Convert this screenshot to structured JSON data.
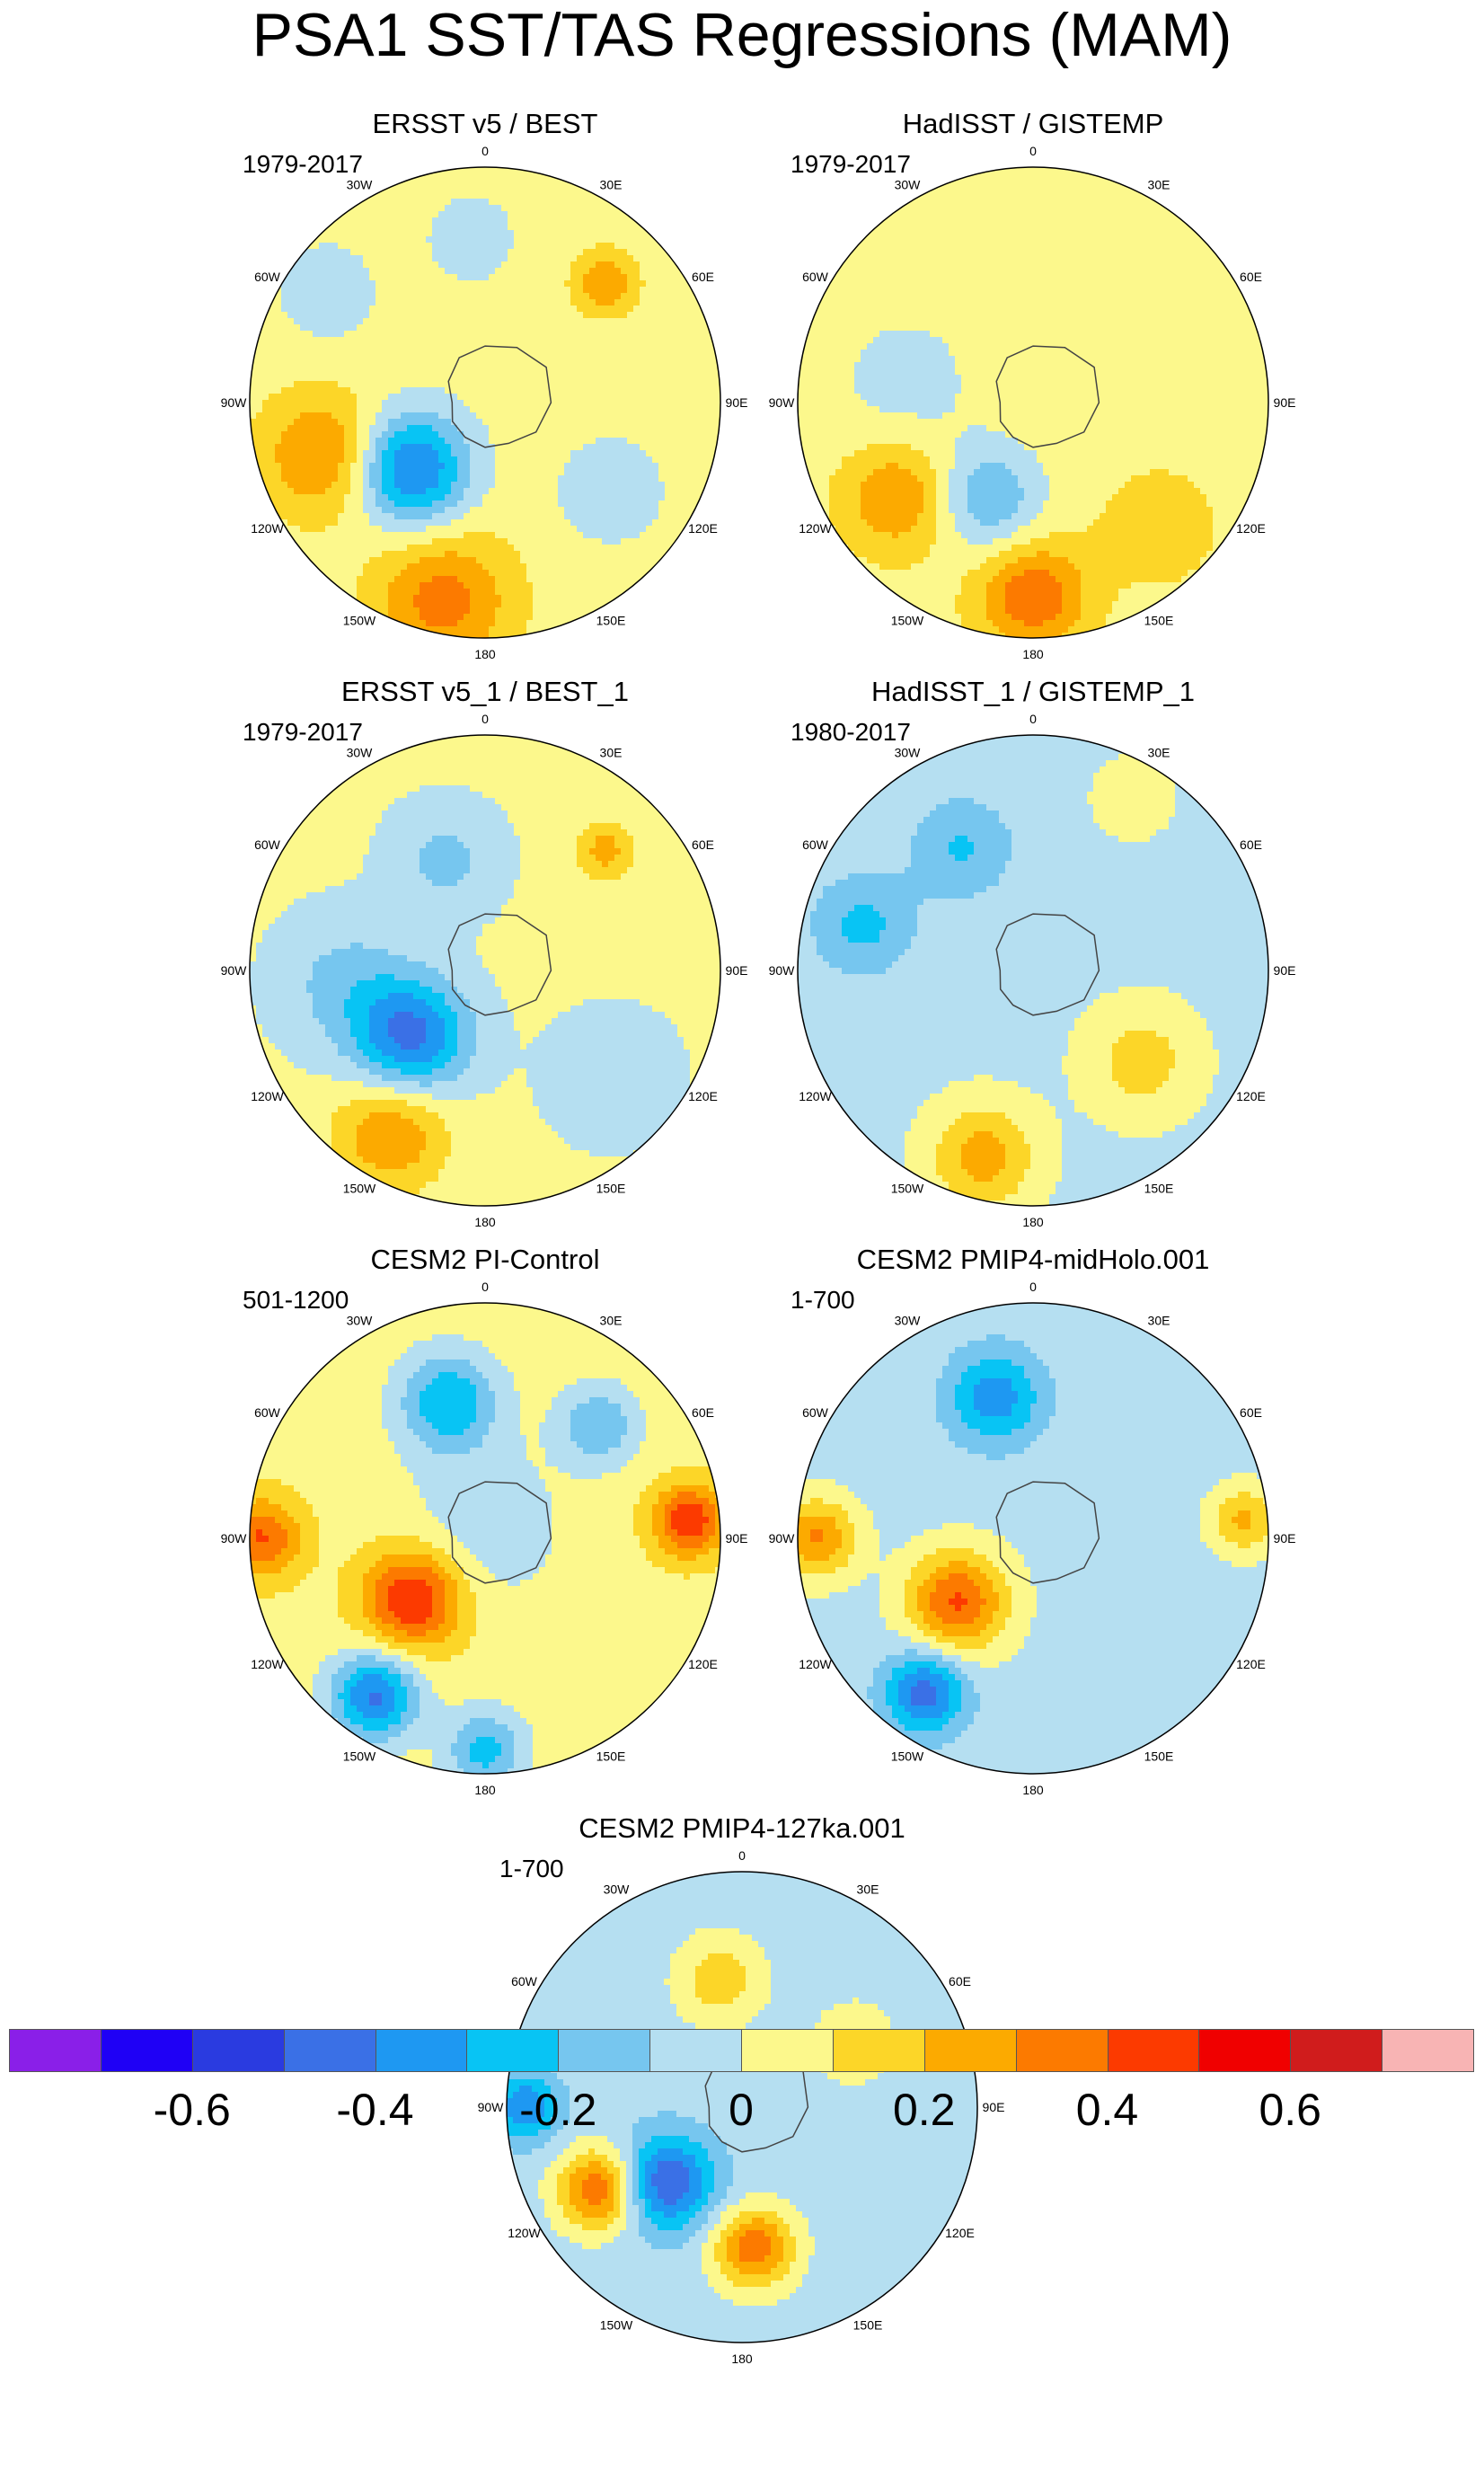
{
  "chart_data": {
    "type": "polar-stereographic contour maps",
    "title": "PSA1 SST/TAS Regressions (MAM)",
    "longitude_labels": [
      "0",
      "30E",
      "60E",
      "90E",
      "120E",
      "150E",
      "180",
      "150W",
      "120W",
      "90W",
      "60W",
      "30W"
    ],
    "panels": [
      {
        "title": "ERSST v5 / BEST",
        "years": "1979-2017",
        "pattern": {
          "base": 0.05,
          "blobs": [
            {
              "az": 228,
              "r": 0.42,
              "v": -0.48,
              "s": 0.17
            },
            {
              "az": 252,
              "r": 0.72,
              "v": 0.28,
              "s": 0.18
            },
            {
              "az": 192,
              "r": 0.86,
              "v": 0.3,
              "s": 0.2
            },
            {
              "az": 45,
              "r": 0.72,
              "v": 0.25,
              "s": 0.09
            },
            {
              "az": 125,
              "r": 0.65,
              "v": -0.15,
              "s": 0.15
            },
            {
              "az": 305,
              "r": 0.82,
              "v": -0.12,
              "s": 0.15
            },
            {
              "az": 355,
              "r": 0.7,
              "v": -0.1,
              "s": 0.15
            }
          ]
        }
      },
      {
        "title": "HadISST / GISTEMP",
        "years": "1979-2017",
        "pattern": {
          "base": 0.06,
          "blobs": [
            {
              "az": 205,
              "r": 0.45,
              "v": -0.25,
              "s": 0.16
            },
            {
              "az": 180,
              "r": 0.82,
              "v": 0.33,
              "s": 0.16
            },
            {
              "az": 235,
              "r": 0.7,
              "v": 0.25,
              "s": 0.16
            },
            {
              "az": 280,
              "r": 0.55,
              "v": -0.1,
              "s": 0.22
            },
            {
              "az": 135,
              "r": 0.75,
              "v": 0.12,
              "s": 0.16
            }
          ]
        }
      },
      {
        "title": "ERSST v5_1 / BEST_1",
        "years": "1979-2017",
        "pattern": {
          "base": 0.02,
          "blobs": [
            {
              "az": 228,
              "r": 0.42,
              "v": -0.45,
              "s": 0.17
            },
            {
              "az": 210,
              "r": 0.8,
              "v": 0.28,
              "s": 0.17
            },
            {
              "az": 265,
              "r": 0.6,
              "v": -0.15,
              "s": 0.2
            },
            {
              "az": 45,
              "r": 0.72,
              "v": 0.22,
              "s": 0.09
            },
            {
              "az": 130,
              "r": 0.7,
              "v": -0.12,
              "s": 0.18
            },
            {
              "az": 340,
              "r": 0.5,
              "v": -0.15,
              "s": 0.16
            }
          ]
        }
      },
      {
        "title": "HadISST_1 / GISTEMP_1",
        "years": "1980-2017",
        "pattern": {
          "base": -0.03,
          "blobs": [
            {
              "az": 195,
              "r": 0.82,
              "v": 0.28,
              "s": 0.16
            },
            {
              "az": 130,
              "r": 0.6,
              "v": 0.18,
              "s": 0.17
            },
            {
              "az": 285,
              "r": 0.75,
              "v": -0.2,
              "s": 0.15
            },
            {
              "az": 330,
              "r": 0.6,
              "v": -0.18,
              "s": 0.15
            },
            {
              "az": 30,
              "r": 0.85,
              "v": 0.1,
              "s": 0.12
            }
          ]
        }
      },
      {
        "title": "CESM2 PI-Control",
        "years": "501-1200",
        "pattern": {
          "base": 0.06,
          "blobs": [
            {
              "az": 230,
              "r": 0.4,
              "v": 0.46,
              "s": 0.15
            },
            {
              "az": 270,
              "r": 0.95,
              "v": 0.35,
              "s": 0.12
            },
            {
              "az": 215,
              "r": 0.82,
              "v": -0.48,
              "s": 0.13
            },
            {
              "az": 180,
              "r": 0.9,
              "v": -0.3,
              "s": 0.12
            },
            {
              "az": 85,
              "r": 0.87,
              "v": 0.42,
              "s": 0.11
            },
            {
              "az": 345,
              "r": 0.6,
              "v": -0.35,
              "s": 0.15
            },
            {
              "az": 45,
              "r": 0.68,
              "v": -0.25,
              "s": 0.12
            },
            {
              "az": 0,
              "r": 0.05,
              "v": -0.12,
              "s": 0.25
            }
          ]
        }
      },
      {
        "title": "CESM2 PMIP4-midHolo.001",
        "years": "1-700",
        "pattern": {
          "base": -0.04,
          "blobs": [
            {
              "az": 230,
              "r": 0.42,
              "v": 0.45,
              "s": 0.15
            },
            {
              "az": 270,
              "r": 0.92,
              "v": 0.35,
              "s": 0.12
            },
            {
              "az": 215,
              "r": 0.8,
              "v": -0.42,
              "s": 0.12
            },
            {
              "az": 345,
              "r": 0.62,
              "v": -0.32,
              "s": 0.14
            },
            {
              "az": 85,
              "r": 0.9,
              "v": 0.26,
              "s": 0.1
            }
          ]
        }
      },
      {
        "title": "CESM2 PMIP4-127ka.001",
        "years": "1-700",
        "pattern": {
          "base": -0.05,
          "blobs": [
            {
              "az": 240,
              "r": 0.7,
              "v": 0.45,
              "s": 0.12
            },
            {
              "az": 225,
              "r": 0.45,
              "v": -0.45,
              "s": 0.14
            },
            {
              "az": 270,
              "r": 0.92,
              "v": -0.35,
              "s": 0.1
            },
            {
              "az": 175,
              "r": 0.6,
              "v": 0.42,
              "s": 0.12
            },
            {
              "az": 350,
              "r": 0.55,
              "v": 0.22,
              "s": 0.13
            },
            {
              "az": 60,
              "r": 0.55,
              "v": 0.15,
              "s": 0.12
            }
          ]
        }
      }
    ],
    "colorbar": {
      "levels": [
        -0.7,
        -0.6,
        -0.5,
        -0.4,
        -0.3,
        -0.2,
        -0.1,
        0,
        0.1,
        0.2,
        0.3,
        0.4,
        0.5,
        0.6,
        0.7
      ],
      "colors": [
        "#8a1fe8",
        "#1f00f5",
        "#2a3be0",
        "#3a70e6",
        "#1e98f2",
        "#08c4f4",
        "#76c6ef",
        "#b5dff1",
        "#fcf88c",
        "#fcd628",
        "#fcaa00",
        "#fc7a00",
        "#fc3a00",
        "#f00000",
        "#d01c1c",
        "#f8b4b4"
      ],
      "tick_labels": [
        "-0.6",
        "-0.4",
        "-0.2",
        "0",
        "0.2",
        "0.4",
        "0.6"
      ]
    }
  }
}
